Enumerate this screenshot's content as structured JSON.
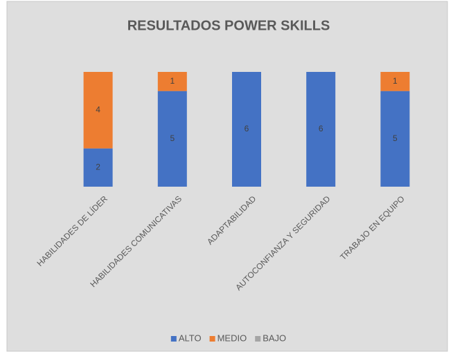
{
  "chart_data": {
    "type": "stacked_bar",
    "title": "RESULTADOS POWER SKILLS",
    "categories": [
      "HABILIDADES DE LÍDER",
      "HABILIDADES COMUNICATIVAS",
      "ADAPTABILIDAD",
      "AUTOCONFIANZA Y SEGURIDAD",
      "TRABAJO EN EQUIPO"
    ],
    "series": [
      {
        "name": "ALTO",
        "color": "#4472c4",
        "values": [
          2,
          5,
          6,
          6,
          5
        ]
      },
      {
        "name": "MEDIO",
        "color": "#ed7d31",
        "values": [
          4,
          1,
          0,
          0,
          1
        ]
      },
      {
        "name": "BAJO",
        "color": "#a5a5a5",
        "values": [
          0,
          0,
          0,
          0,
          0
        ]
      }
    ],
    "ylim": [
      0,
      6
    ],
    "legend": "bottom"
  }
}
